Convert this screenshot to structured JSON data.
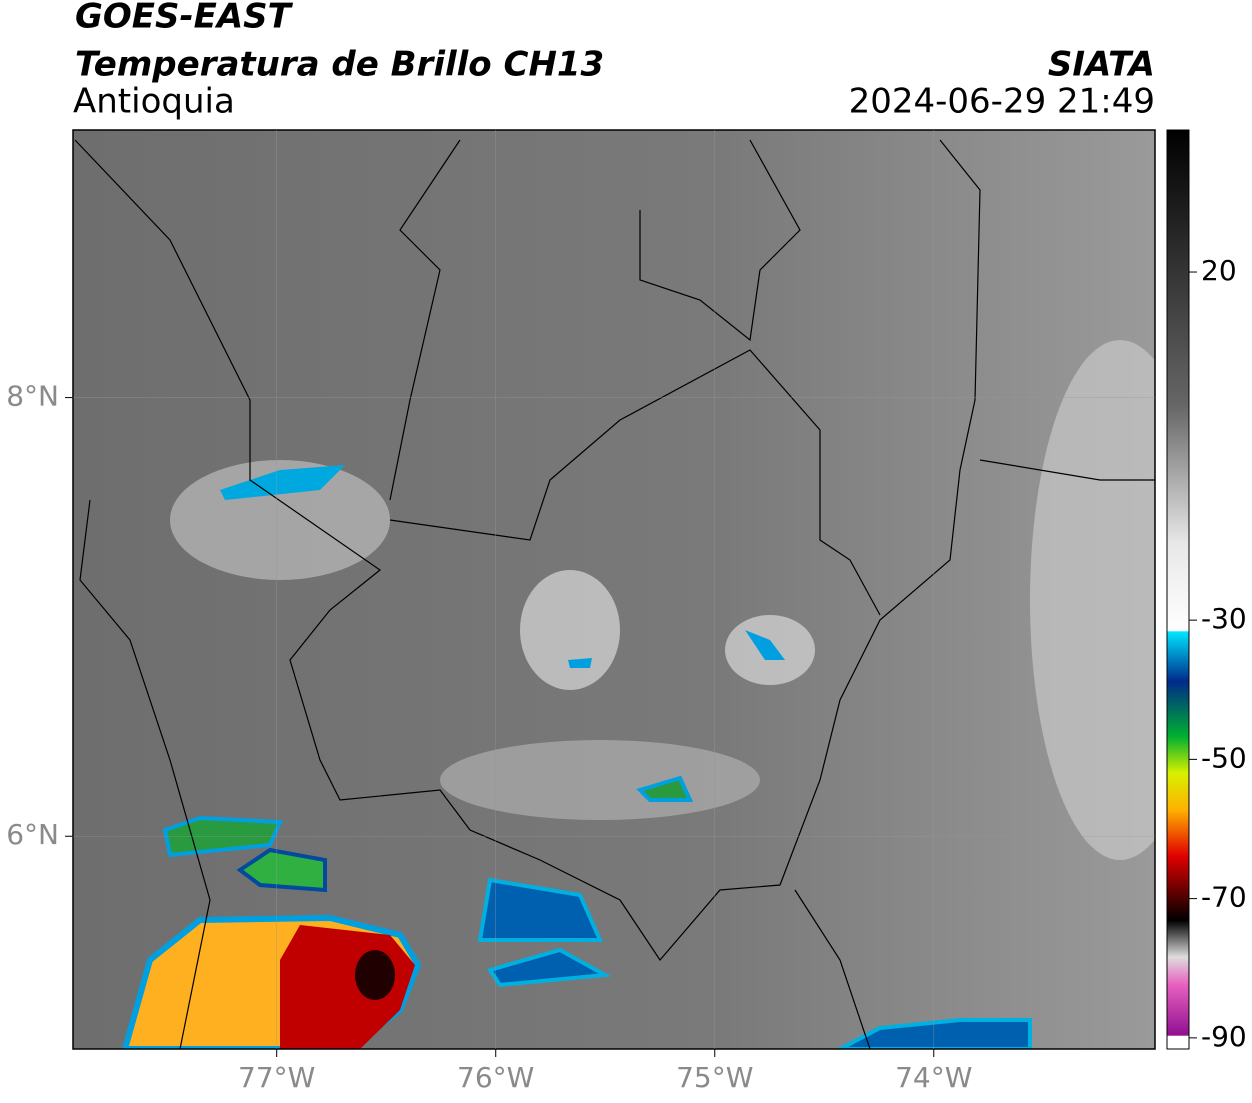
{
  "header": {
    "title": "GOES-EAST",
    "subtitle": "Temperatura de Brillo CH13",
    "region": "Antioquia",
    "source": "SIATA",
    "datetime": "2024-06-29 21:49"
  },
  "map": {
    "xlim": [
      -77.93,
      -72.99
    ],
    "ylim": [
      5.03,
      9.22
    ],
    "xticks": [
      {
        "value": -77,
        "label": "77°W"
      },
      {
        "value": -76,
        "label": "76°W"
      },
      {
        "value": -75,
        "label": "75°W"
      },
      {
        "value": -74,
        "label": "74°W"
      }
    ],
    "yticks": [
      {
        "value": 8,
        "label": "8°N"
      },
      {
        "value": 6,
        "label": "6°N"
      }
    ]
  },
  "colorbar": {
    "lim": [
      -91.6,
      40.4
    ],
    "ticks": [
      20,
      -30,
      -50,
      -70,
      -90
    ]
  }
}
